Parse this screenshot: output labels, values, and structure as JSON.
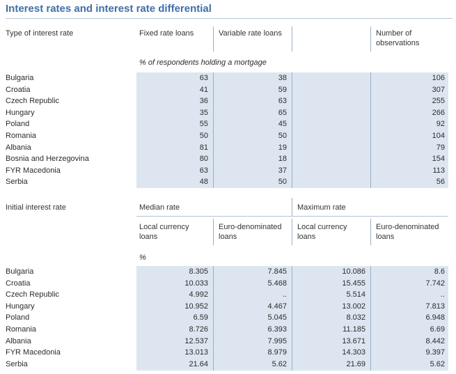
{
  "title": "Interest rates and interest rate differential",
  "section1": {
    "col_headers": {
      "type": "Type of interest rate",
      "fixed": "Fixed rate loans",
      "variable": "Variable rate loans",
      "obs": "Number of observations"
    },
    "unit_note": "% of respondents holding a mortgage",
    "rows": [
      {
        "country": "Bulgaria",
        "fixed": "63",
        "variable": "38",
        "obs": "106"
      },
      {
        "country": "Croatia",
        "fixed": "41",
        "variable": "59",
        "obs": "307"
      },
      {
        "country": "Czech Republic",
        "fixed": "36",
        "variable": "63",
        "obs": "255"
      },
      {
        "country": "Hungary",
        "fixed": "35",
        "variable": "65",
        "obs": "266"
      },
      {
        "country": "Poland",
        "fixed": "55",
        "variable": "45",
        "obs": "92"
      },
      {
        "country": "Romania",
        "fixed": "50",
        "variable": "50",
        "obs": "104"
      },
      {
        "country": "Albania",
        "fixed": "81",
        "variable": "19",
        "obs": "79"
      },
      {
        "country": "Bosnia and Herzegovina",
        "fixed": "80",
        "variable": "18",
        "obs": "154"
      },
      {
        "country": "FYR Macedonia",
        "fixed": "63",
        "variable": "37",
        "obs": "113"
      },
      {
        "country": "Serbia",
        "fixed": "48",
        "variable": "50",
        "obs": "56"
      }
    ]
  },
  "section2": {
    "row_header": "Initial interest rate",
    "median_header": "Median rate",
    "max_header": "Maximum rate",
    "sub_headers": {
      "local": "Local currency loans",
      "euro": "Euro-denominated loans"
    },
    "unit_note": "%",
    "rows": [
      {
        "country": "Bulgaria",
        "med_local": "8.305",
        "med_euro": "7.845",
        "max_local": "10.086",
        "max_euro": "8.6"
      },
      {
        "country": "Croatia",
        "med_local": "10.033",
        "med_euro": "5.468",
        "max_local": "15.455",
        "max_euro": "7.742"
      },
      {
        "country": "Czech Republic",
        "med_local": "4.992",
        "med_euro": "..",
        "max_local": "5.514",
        "max_euro": ".."
      },
      {
        "country": "Hungary",
        "med_local": "10.952",
        "med_euro": "4.467",
        "max_local": "13.002",
        "max_euro": "7.813"
      },
      {
        "country": "Poland",
        "med_local": "6.59",
        "med_euro": "5.045",
        "max_local": "8.032",
        "max_euro": "6.948"
      },
      {
        "country": "Romania",
        "med_local": "8.726",
        "med_euro": "6.393",
        "max_local": "11.185",
        "max_euro": "6.69"
      },
      {
        "country": "Albania",
        "med_local": "12.537",
        "med_euro": "7.995",
        "max_local": "13.671",
        "max_euro": "8.442"
      },
      {
        "country": "FYR Macedonia",
        "med_local": "13.013",
        "med_euro": "8.979",
        "max_local": "14.303",
        "max_euro": "9.397"
      },
      {
        "country": "Serbia",
        "med_local": "21.64",
        "med_euro": "5.62",
        "max_local": "21.69",
        "max_euro": "5.62"
      }
    ]
  }
}
